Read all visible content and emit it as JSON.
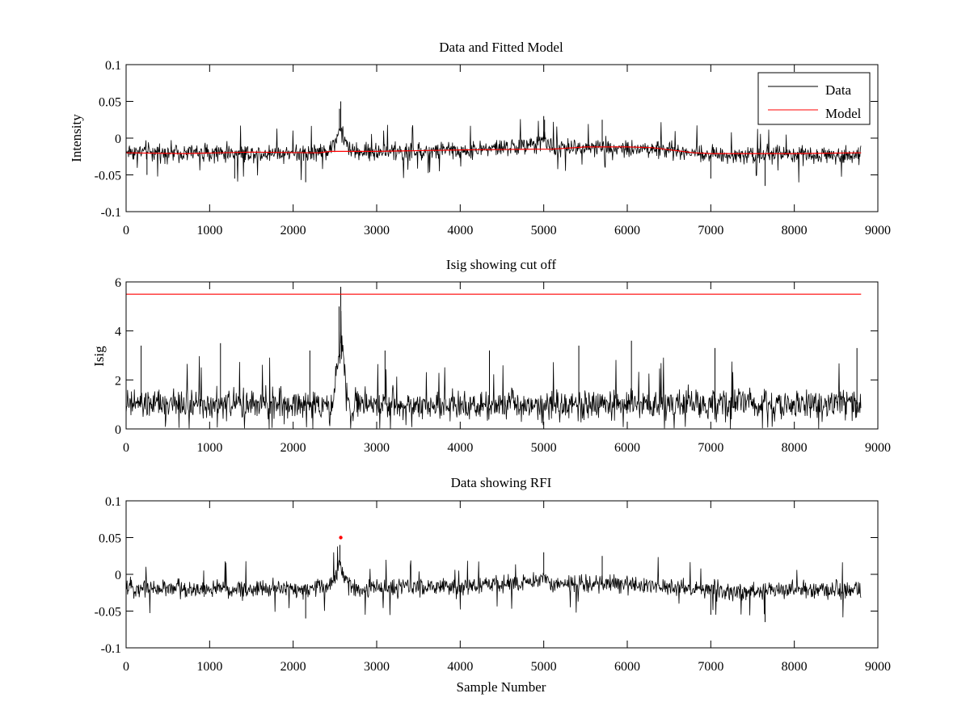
{
  "figure": {
    "background": "#ffffff",
    "axis_color": "#000000"
  },
  "chart_data": [
    {
      "type": "line",
      "title": "Data and Fitted Model",
      "xlabel": "",
      "ylabel": "Intensity",
      "xlim": [
        0,
        9000
      ],
      "ylim": [
        -0.1,
        0.1
      ],
      "xticks": [
        0,
        1000,
        2000,
        3000,
        4000,
        5000,
        6000,
        7000,
        8000,
        9000
      ],
      "xtick_labels": [
        "0",
        "1000",
        "2000",
        "3000",
        "4000",
        "5000",
        "6000",
        "7000",
        "8000",
        "9000"
      ],
      "yticks": [
        -0.1,
        -0.05,
        0,
        0.05,
        0.1
      ],
      "ytick_labels": [
        "-0.1",
        "-0.05",
        "0",
        "0.05",
        "0.1"
      ],
      "legend": {
        "position": "top-right",
        "entries": [
          "Data",
          "Model"
        ]
      },
      "series": [
        {
          "name": "Data",
          "color": "#000000",
          "render": "noise_band",
          "x_start": 0,
          "x_end": 8800,
          "baseline": {
            "x": [
              0,
              1000,
              2000,
              2400,
              2500,
              2560,
              2620,
              2700,
              3000,
              4000,
              4900,
              5000,
              5100,
              5500,
              6000,
              6300,
              7000,
              8000,
              8800
            ],
            "y": [
              -0.018,
              -0.02,
              -0.02,
              -0.018,
              -0.005,
              0.012,
              -0.005,
              -0.018,
              -0.019,
              -0.017,
              -0.01,
              0.0,
              -0.014,
              -0.013,
              -0.013,
              -0.015,
              -0.022,
              -0.022,
              -0.022
            ]
          },
          "noise_amplitude": 0.018,
          "spikes": [
            {
              "x": 2570,
              "y": 0.05
            },
            {
              "x": 2555,
              "y": 0.04
            },
            {
              "x": 5000,
              "y": 0.03
            },
            {
              "x": 5010,
              "y": 0.025
            },
            {
              "x": 5700,
              "y": 0.025
            },
            {
              "x": 7000,
              "y": -0.055
            },
            {
              "x": 7650,
              "y": -0.065
            },
            {
              "x": 1300,
              "y": -0.055
            },
            {
              "x": 250,
              "y": -0.05
            },
            {
              "x": 2150,
              "y": -0.06
            }
          ]
        },
        {
          "name": "Model",
          "color": "#ff0000",
          "render": "line",
          "x": [
            0,
            700,
            1500,
            2300,
            2450,
            2700,
            3000,
            4000,
            4900,
            5100,
            5500,
            6000,
            6300,
            6800,
            7000,
            8000,
            8800
          ],
          "y": [
            -0.02,
            -0.021,
            -0.019,
            -0.02,
            -0.018,
            -0.018,
            -0.018,
            -0.016,
            -0.015,
            -0.015,
            -0.012,
            -0.012,
            -0.013,
            -0.02,
            -0.021,
            -0.021,
            -0.02
          ]
        }
      ]
    },
    {
      "type": "line",
      "title": "Isig showing cut off",
      "xlabel": "",
      "ylabel": "Isig",
      "xlim": [
        0,
        9000
      ],
      "ylim": [
        0,
        6
      ],
      "xticks": [
        0,
        1000,
        2000,
        3000,
        4000,
        5000,
        6000,
        7000,
        8000,
        9000
      ],
      "xtick_labels": [
        "0",
        "1000",
        "2000",
        "3000",
        "4000",
        "5000",
        "6000",
        "7000",
        "8000",
        "9000"
      ],
      "yticks": [
        0,
        2,
        4,
        6
      ],
      "ytick_labels": [
        "0",
        "2",
        "4",
        "6"
      ],
      "series": [
        {
          "name": "Isig",
          "color": "#000000",
          "render": "noise_band",
          "x_start": 0,
          "x_end": 8800,
          "baseline": {
            "x": [
              0,
              2400,
              2450,
              2530,
              2570,
              2620,
              2680,
              2750,
              8800
            ],
            "y": [
              1.0,
              1.0,
              0.5,
              2.5,
              3.5,
              2.5,
              0.5,
              1.0,
              1.0
            ]
          },
          "noise_amplitude": 0.9,
          "floor": 0,
          "spikes": [
            {
              "x": 2570,
              "y": 5.8
            },
            {
              "x": 2550,
              "y": 5.0
            },
            {
              "x": 180,
              "y": 3.4
            },
            {
              "x": 1130,
              "y": 3.5
            },
            {
              "x": 2200,
              "y": 3.2
            },
            {
              "x": 3100,
              "y": 3.2
            },
            {
              "x": 4350,
              "y": 3.2
            },
            {
              "x": 5420,
              "y": 3.4
            },
            {
              "x": 6050,
              "y": 3.6
            },
            {
              "x": 7050,
              "y": 3.3
            },
            {
              "x": 8750,
              "y": 3.3
            }
          ]
        },
        {
          "name": "Cut off",
          "color": "#ff0000",
          "render": "line",
          "x": [
            0,
            8800
          ],
          "y": [
            5.5,
            5.5
          ]
        }
      ]
    },
    {
      "type": "line",
      "title": "Data showing RFI",
      "xlabel": "Sample Number",
      "ylabel": "",
      "xlim": [
        0,
        9000
      ],
      "ylim": [
        -0.1,
        0.1
      ],
      "xticks": [
        0,
        1000,
        2000,
        3000,
        4000,
        5000,
        6000,
        7000,
        8000,
        9000
      ],
      "xtick_labels": [
        "0",
        "1000",
        "2000",
        "3000",
        "4000",
        "5000",
        "6000",
        "7000",
        "8000",
        "9000"
      ],
      "yticks": [
        -0.1,
        -0.05,
        0,
        0.05,
        0.1
      ],
      "ytick_labels": [
        "-0.1",
        "-0.05",
        "0",
        "0.05",
        "0.1"
      ],
      "series": [
        {
          "name": "Data",
          "color": "#000000",
          "render": "noise_band",
          "x_start": 0,
          "x_end": 8800,
          "baseline": {
            "x": [
              0,
              1000,
              2000,
              2400,
              2500,
              2560,
              2620,
              2700,
              3000,
              4000,
              4900,
              5000,
              5100,
              5500,
              6000,
              6300,
              7000,
              8000,
              8800
            ],
            "y": [
              -0.018,
              -0.02,
              -0.02,
              -0.018,
              -0.005,
              0.012,
              -0.005,
              -0.018,
              -0.019,
              -0.017,
              -0.01,
              0.0,
              -0.014,
              -0.013,
              -0.013,
              -0.015,
              -0.022,
              -0.022,
              -0.022
            ]
          },
          "noise_amplitude": 0.018,
          "spikes": [
            {
              "x": 2560,
              "y": 0.04
            },
            {
              "x": 5000,
              "y": 0.03
            },
            {
              "x": 5700,
              "y": 0.025
            },
            {
              "x": 7000,
              "y": -0.055
            },
            {
              "x": 7650,
              "y": -0.065
            },
            {
              "x": 2150,
              "y": -0.06
            }
          ]
        },
        {
          "name": "RFI",
          "color": "#ff0000",
          "render": "points",
          "x": [
            2570
          ],
          "y": [
            0.05
          ]
        }
      ]
    }
  ]
}
